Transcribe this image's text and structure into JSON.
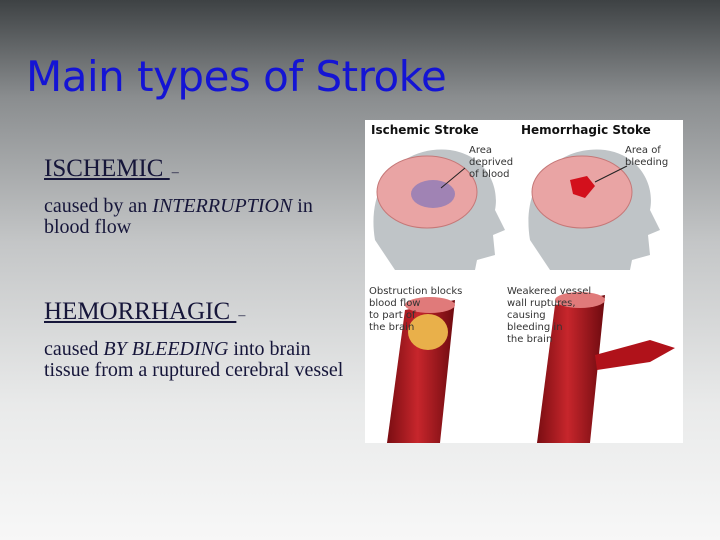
{
  "slide": {
    "title": "Main types of Stroke",
    "sections": [
      {
        "heading": "ISCHEMIC ",
        "dash": "–",
        "body": [
          {
            "text": "caused by an "
          },
          {
            "text": "INTERRUPTION",
            "italic": true
          },
          {
            "text": " in blood flow"
          }
        ]
      },
      {
        "heading": "HEMORRHAGIC ",
        "dash": "–",
        "body": [
          {
            "text": "caused "
          },
          {
            "text": "BY BLEEDING",
            "italic": true
          },
          {
            "text": " into brain tissue from a ruptured cerebral vessel"
          }
        ]
      }
    ],
    "figure": {
      "ischemic_title": "Ischemic Stroke",
      "hemorrhagic_title": "Hemorrhagic Stoke",
      "ischemic_area": [
        "Area",
        "deprived",
        "of blood"
      ],
      "hemorrhagic_area": [
        "Area of",
        "bleeding"
      ],
      "obstruction": [
        "Obstruction blocks",
        "blood flow",
        "to part of",
        "the brain"
      ],
      "rupture": [
        "Weakered vessel",
        "wall ruptures,",
        "causing",
        "bleeding in",
        "the brain"
      ]
    }
  }
}
